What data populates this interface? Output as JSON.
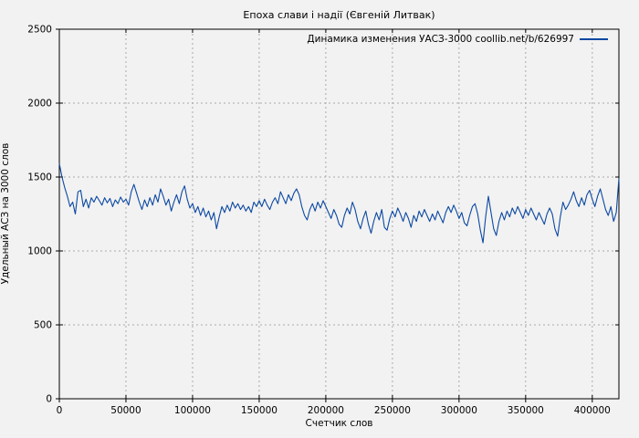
{
  "colors": {
    "background": "#f2f2f2",
    "plot_border": "#000000",
    "grid": "#a9a9a9",
    "series_line": "#0b48a2",
    "text": "#000000"
  },
  "chart_data": {
    "type": "line",
    "title": "Епоха слави і надії (Євгеній Литвак)",
    "xlabel": "Счетчик слов",
    "ylabel": "Удельный АСЗ на 3000 слов",
    "legend_label": "Динамика изменения УАСЗ-3000 coollib.net/b/626997",
    "legend_position": "inside-top-right",
    "grid": true,
    "xlim": [
      0,
      420000
    ],
    "ylim": [
      0,
      2500
    ],
    "xticks": [
      0,
      50000,
      100000,
      150000,
      200000,
      250000,
      300000,
      350000,
      400000
    ],
    "yticks": [
      0,
      500,
      1000,
      1500,
      2000,
      2500
    ],
    "series": [
      {
        "name": "Динамика изменения УАСЗ-3000 coollib.net/b/626997",
        "x_start": 0,
        "x_step": 2000,
        "values": [
          1590,
          1500,
          1430,
          1370,
          1300,
          1330,
          1250,
          1400,
          1410,
          1300,
          1350,
          1290,
          1360,
          1330,
          1370,
          1340,
          1310,
          1360,
          1325,
          1355,
          1300,
          1345,
          1320,
          1365,
          1330,
          1350,
          1310,
          1400,
          1450,
          1390,
          1330,
          1280,
          1345,
          1300,
          1360,
          1310,
          1380,
          1330,
          1420,
          1370,
          1310,
          1350,
          1270,
          1330,
          1380,
          1320,
          1400,
          1440,
          1350,
          1290,
          1320,
          1260,
          1300,
          1240,
          1290,
          1230,
          1270,
          1210,
          1260,
          1150,
          1230,
          1300,
          1260,
          1310,
          1270,
          1330,
          1290,
          1320,
          1280,
          1310,
          1270,
          1300,
          1260,
          1330,
          1300,
          1340,
          1300,
          1350,
          1310,
          1280,
          1330,
          1360,
          1320,
          1400,
          1360,
          1320,
          1380,
          1340,
          1390,
          1420,
          1380,
          1300,
          1240,
          1210,
          1280,
          1320,
          1270,
          1330,
          1290,
          1340,
          1300,
          1260,
          1220,
          1280,
          1240,
          1180,
          1160,
          1240,
          1290,
          1250,
          1330,
          1280,
          1200,
          1150,
          1220,
          1270,
          1180,
          1120,
          1200,
          1260,
          1210,
          1280,
          1160,
          1140,
          1220,
          1270,
          1230,
          1290,
          1250,
          1200,
          1260,
          1220,
          1160,
          1240,
          1200,
          1270,
          1230,
          1280,
          1240,
          1200,
          1250,
          1210,
          1270,
          1230,
          1190,
          1260,
          1300,
          1260,
          1310,
          1270,
          1220,
          1260,
          1190,
          1170,
          1240,
          1300,
          1320,
          1250,
          1140,
          1055,
          1230,
          1370,
          1260,
          1150,
          1105,
          1200,
          1260,
          1210,
          1270,
          1230,
          1290,
          1250,
          1300,
          1260,
          1220,
          1280,
          1240,
          1290,
          1250,
          1210,
          1260,
          1220,
          1180,
          1250,
          1290,
          1250,
          1150,
          1100,
          1230,
          1330,
          1280,
          1310,
          1350,
          1400,
          1340,
          1300,
          1360,
          1310,
          1380,
          1410,
          1350,
          1300,
          1370,
          1420,
          1350,
          1280,
          1240,
          1300,
          1200,
          1260,
          1490
        ]
      }
    ]
  }
}
